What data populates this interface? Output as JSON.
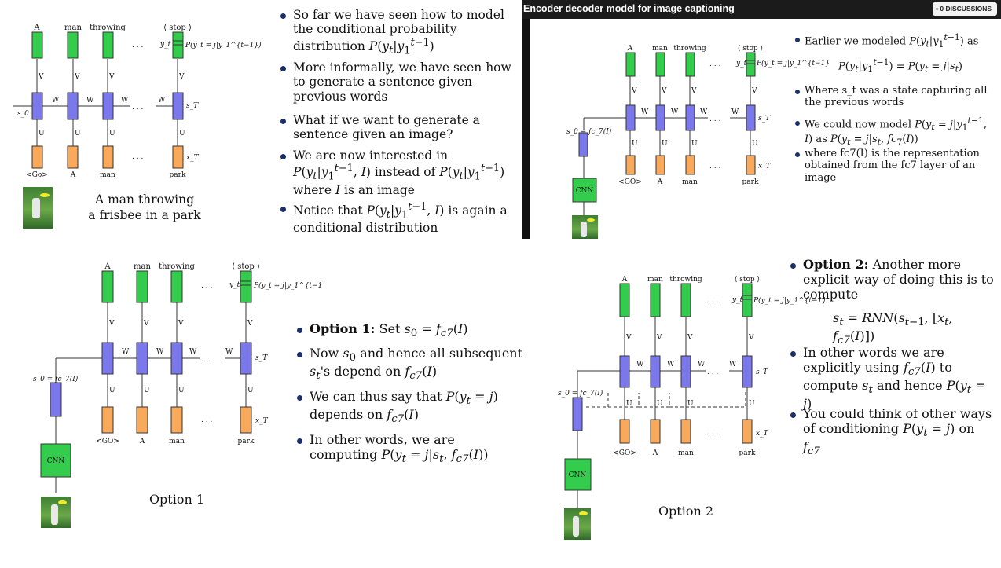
{
  "header": {
    "title": "Encoder decoder model for image captioning",
    "discussions_label": "0 DISCUSSIONS"
  },
  "labels": {
    "A": "A",
    "man": "man",
    "throwing": "throwing",
    "stop": "⟨ stop ⟩",
    "go_small": "<Go>",
    "go": "<GO>",
    "park": "park",
    "V": "V",
    "W": "W",
    "U": "U",
    "yt": "y_t",
    "sT": "s_T",
    "xT": "x_T",
    "s0": "s_0",
    "dots": ". . .",
    "cnn": "CNN",
    "prob_top": "P(y_t = j|y_1^{t−1})",
    "prob_img": "P(y_t = j|y_1^{t−1}, I)",
    "s0_eq": "s_0 = fc_7(I)"
  },
  "panel1": {
    "caption_line1": "A man throwing",
    "caption_line2": "a frisbee in a park",
    "bullets": [
      "So far we have seen how to model the conditional probability distribution P(y_t|y_1^{t−1})",
      "More informally, we have seen how to generate a sentence given previous words",
      "What if we want to generate a sentence given an image?",
      "We are now interested in P(y_t|y_1^{t−1}, I) instead of P(y_t|y_1^{t−1}) where I is an image",
      "Notice that P(y_t|y_1^{t−1}, I) is again a conditional distribution"
    ]
  },
  "panel2": {
    "bullets": [
      "Earlier we modeled P(y_t|y_1^{t−1}) as",
      "P(y_t|y_1^{t−1}) = P(y_t = j|s_t)",
      "Where s_t was a state capturing all the previous words",
      "We could now model P(y_t = j|y_1^{t−1}, I) as P(y_t = j|s_t, fc_7(I))",
      "where fc7(I) is the representation obtained from the fc7 layer of an image"
    ]
  },
  "panel3": {
    "caption": "Option 1",
    "bullets": [
      "Option 1:",
      "Set s_0 = fc_7(I)",
      "Now s_0 and hence all subsequent s_t's depend on fc_7(I)",
      "We can thus say that P(y_t = j) depends on fc_7(I)",
      "In other words, we are computing P(y_t = j|s_t, fc_7(I))"
    ]
  },
  "panel4": {
    "caption": "Option 2",
    "bullets": [
      "Option 2:",
      "Another more explicit way of doing this is to compute",
      "s_t = RNN(s_{t−1}, [x_t, fc_7(I)])",
      "In other words we are explicitly using fc_7(I) to compute s_t and hence P(y_t = j)",
      "You could think of other ways of conditioning P(y_t = j) on fc_7"
    ]
  },
  "colors": {
    "green": "#33cc4d",
    "blue": "#7b78ec",
    "orange": "#f8a95c",
    "bullet": "#1d2f6b",
    "header": "#1b1b1b"
  }
}
